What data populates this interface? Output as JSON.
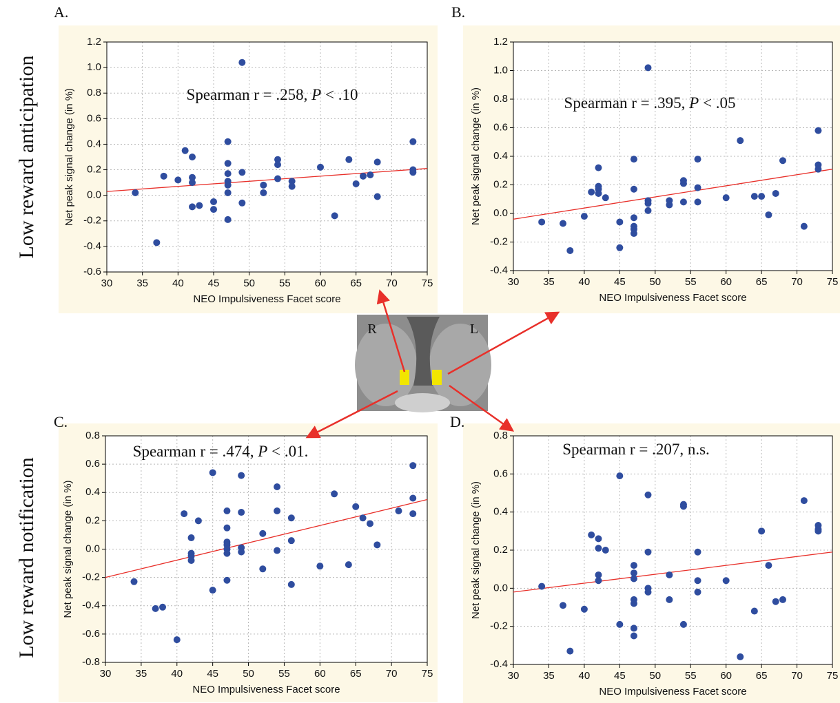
{
  "figure": {
    "row_labels": [
      "Low reward anticipation",
      "Low reward notification"
    ],
    "brain_labels": [
      "R",
      "L"
    ]
  },
  "chart_data": [
    {
      "type": "scatter",
      "panel": "A.",
      "annotation": [
        "Spearman r = .258, ",
        "P",
        " < .10"
      ],
      "x_label": "NEO Impulsiveness Facet score",
      "y_label": "Net peak signal change (in %)",
      "x": [
        34,
        37,
        38,
        40,
        41,
        42,
        42,
        42,
        42,
        43,
        45,
        45,
        47,
        47,
        47,
        47,
        47,
        47,
        47,
        49,
        49,
        49,
        52,
        52,
        54,
        54,
        54,
        56,
        56,
        60,
        62,
        64,
        65,
        66,
        67,
        68,
        68,
        73,
        73,
        73
      ],
      "y": [
        0.02,
        -0.37,
        0.15,
        0.12,
        0.35,
        0.3,
        0.14,
        0.1,
        -0.09,
        -0.08,
        -0.05,
        -0.11,
        0.42,
        0.25,
        0.17,
        0.11,
        0.02,
        -0.19,
        0.08,
        1.04,
        0.18,
        -0.06,
        0.08,
        0.02,
        0.28,
        0.24,
        0.13,
        0.11,
        0.07,
        0.22,
        -0.16,
        0.28,
        0.09,
        0.15,
        0.16,
        0.26,
        -0.01,
        0.42,
        0.2,
        0.18
      ],
      "color": "#2f4d9f",
      "fit_line": {
        "x": [
          30,
          75
        ],
        "y": [
          0.03,
          0.21
        ],
        "color": "#e8302a"
      },
      "xlim": [
        30,
        75
      ],
      "ylim": [
        -0.6,
        1.2
      ],
      "xticks": [
        30,
        35,
        40,
        45,
        50,
        55,
        60,
        65,
        70,
        75
      ],
      "yticks": [
        -0.6,
        -0.4,
        -0.2,
        {
          "value": 0,
          "label": "0.0"
        },
        0.2,
        0.4,
        0.6,
        0.8,
        {
          "value": 1,
          "label": "1.0"
        },
        1.2
      ],
      "grid": true
    },
    {
      "type": "scatter",
      "panel": "B.",
      "annotation": [
        "Spearman r = .395, ",
        "P",
        " < .05"
      ],
      "x_label": "NEO Impulsiveness Facet score",
      "y_label": "Net peak signal change (in %)",
      "x": [
        34,
        37,
        38,
        40,
        41,
        42,
        42,
        42,
        42,
        43,
        45,
        45,
        47,
        47,
        47,
        47,
        47,
        47,
        49,
        49,
        49,
        49,
        52,
        52,
        54,
        54,
        54,
        56,
        56,
        56,
        60,
        62,
        64,
        65,
        66,
        67,
        68,
        71,
        73,
        73,
        73
      ],
      "y": [
        -0.06,
        -0.07,
        -0.26,
        -0.02,
        0.15,
        0.32,
        0.19,
        0.17,
        0.14,
        0.11,
        -0.06,
        -0.24,
        0.38,
        0.17,
        -0.03,
        -0.09,
        -0.11,
        -0.14,
        1.02,
        0.09,
        0.07,
        0.02,
        0.09,
        0.06,
        0.23,
        0.21,
        0.08,
        0.38,
        0.18,
        0.08,
        0.11,
        0.51,
        0.12,
        0.12,
        -0.01,
        0.14,
        0.37,
        -0.09,
        0.58,
        0.34,
        0.31
      ],
      "color": "#2f4d9f",
      "fit_line": {
        "x": [
          30,
          75
        ],
        "y": [
          -0.04,
          0.31
        ],
        "color": "#e8302a"
      },
      "xlim": [
        30,
        75
      ],
      "ylim": [
        -0.4,
        1.2
      ],
      "xticks": [
        30,
        35,
        40,
        45,
        50,
        55,
        60,
        65,
        70,
        75
      ],
      "yticks": [
        -0.4,
        -0.2,
        {
          "value": 0,
          "label": "0.0"
        },
        0.2,
        0.4,
        0.6,
        0.8,
        {
          "value": 1,
          "label": "1.0"
        },
        1.2
      ],
      "grid": true
    },
    {
      "type": "scatter",
      "panel": "C.",
      "annotation": [
        "Spearman r = .474, ",
        "P",
        " < .01."
      ],
      "x_label": "NEO Impulsiveness Facet score",
      "y_label": "Net peak signal change (in %)",
      "x": [
        34,
        37,
        38,
        40,
        41,
        42,
        42,
        42,
        42,
        43,
        45,
        45,
        47,
        47,
        47,
        47,
        47,
        47,
        47,
        49,
        49,
        49,
        49,
        52,
        52,
        54,
        54,
        54,
        56,
        56,
        56,
        60,
        62,
        64,
        65,
        66,
        67,
        68,
        71,
        73,
        73,
        73
      ],
      "y": [
        -0.23,
        -0.42,
        -0.41,
        -0.64,
        0.25,
        0.08,
        -0.03,
        -0.05,
        -0.08,
        0.2,
        0.54,
        -0.29,
        0.27,
        0.15,
        0.05,
        0.03,
        0.0,
        -0.03,
        -0.22,
        0.52,
        0.26,
        0.01,
        -0.02,
        0.11,
        -0.14,
        0.44,
        0.27,
        -0.01,
        0.22,
        0.06,
        -0.25,
        -0.12,
        0.39,
        -0.11,
        0.3,
        0.22,
        0.18,
        0.03,
        0.27,
        0.59,
        0.36,
        0.25
      ],
      "color": "#2f4d9f",
      "fit_line": {
        "x": [
          30,
          75
        ],
        "y": [
          -0.2,
          0.35
        ],
        "color": "#e8302a"
      },
      "xlim": [
        30,
        75
      ],
      "ylim": [
        -0.8,
        0.8
      ],
      "xticks": [
        30,
        35,
        40,
        45,
        50,
        55,
        60,
        65,
        70,
        75
      ],
      "yticks": [
        -0.8,
        -0.6,
        -0.4,
        -0.2,
        {
          "value": 0,
          "label": "0.0"
        },
        0.2,
        0.4,
        0.6,
        0.8
      ],
      "grid": true
    },
    {
      "type": "scatter",
      "panel": "D.",
      "annotation": [
        "Spearman r = .207, n.s."
      ],
      "x_label": "NEO Impulsiveness Facet score",
      "y_label": "Net peak signal change (in %)",
      "x": [
        34,
        37,
        38,
        40,
        41,
        42,
        42,
        42,
        42,
        43,
        45,
        45,
        47,
        47,
        47,
        47,
        47,
        47,
        47,
        49,
        49,
        49,
        49,
        52,
        52,
        54,
        54,
        54,
        56,
        56,
        56,
        60,
        62,
        64,
        65,
        66,
        67,
        68,
        71,
        73,
        73,
        73
      ],
      "y": [
        0.01,
        -0.09,
        -0.33,
        -0.11,
        0.28,
        0.26,
        0.21,
        0.07,
        0.04,
        0.2,
        0.59,
        -0.19,
        0.12,
        0.08,
        0.05,
        -0.06,
        -0.08,
        -0.21,
        -0.25,
        0.49,
        0.19,
        0.0,
        -0.02,
        0.07,
        -0.06,
        0.44,
        0.43,
        -0.19,
        0.19,
        0.04,
        -0.02,
        0.04,
        -0.36,
        -0.12,
        0.3,
        0.12,
        -0.07,
        -0.06,
        0.46,
        0.33,
        0.31,
        0.3
      ],
      "color": "#2f4d9f",
      "fit_line": {
        "x": [
          30,
          75
        ],
        "y": [
          -0.02,
          0.19
        ],
        "color": "#e8302a"
      },
      "xlim": [
        30,
        75
      ],
      "ylim": [
        -0.4,
        0.8
      ],
      "xticks": [
        30,
        35,
        40,
        45,
        50,
        55,
        60,
        65,
        70,
        75
      ],
      "yticks": [
        -0.4,
        -0.2,
        {
          "value": 0,
          "label": "0.0"
        },
        0.2,
        0.4,
        0.6,
        0.8
      ],
      "grid": true
    }
  ]
}
